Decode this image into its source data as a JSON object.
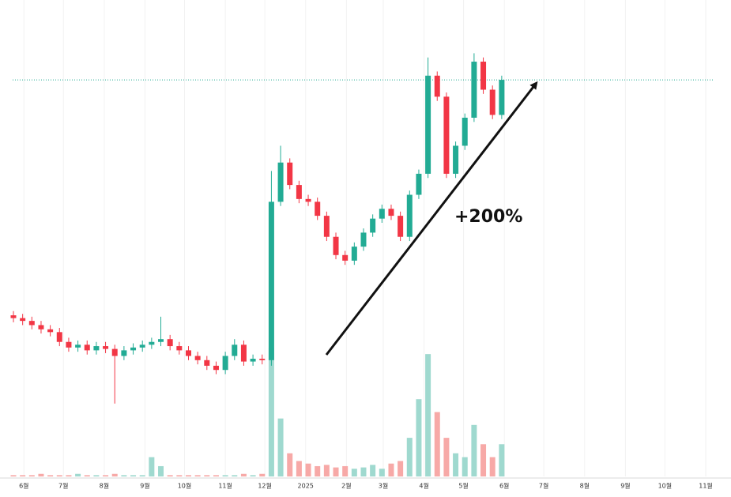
{
  "chart_data": {
    "type": "candlestick",
    "annotation": "+200%",
    "up_color": "#22ab94",
    "down_color": "#f23645",
    "up_volume_color": "#9fd9cf",
    "down_volume_color": "#f7a9a7",
    "last_price_line": true,
    "grid": true,
    "xlim": [
      -17,
      527
    ],
    "ylim": [
      14,
      354
    ],
    "volume_lim": [
      0,
      100
    ],
    "xticks": [
      {
        "value": 0,
        "label": "6월"
      },
      {
        "value": 30,
        "label": "7월"
      },
      {
        "value": 61,
        "label": "8월"
      },
      {
        "value": 92,
        "label": "9월"
      },
      {
        "value": 122,
        "label": "10월"
      },
      {
        "value": 153,
        "label": "11월"
      },
      {
        "value": 183,
        "label": "12월"
      },
      {
        "value": 214,
        "label": "2025"
      },
      {
        "value": 245,
        "label": "2월"
      },
      {
        "value": 273,
        "label": "3월"
      },
      {
        "value": 304,
        "label": "4월"
      },
      {
        "value": 334,
        "label": "5월"
      },
      {
        "value": 365,
        "label": "6월"
      },
      {
        "value": 395,
        "label": "7월"
      },
      {
        "value": 426,
        "label": "8월"
      },
      {
        "value": 457,
        "label": "9월"
      },
      {
        "value": 487,
        "label": "10월"
      },
      {
        "value": 518,
        "label": "11월"
      }
    ],
    "x": [
      -8,
      -1,
      6,
      13,
      20,
      27,
      34,
      41,
      48,
      55,
      62,
      69,
      76,
      83,
      90,
      97,
      104,
      111,
      118,
      125,
      132,
      139,
      146,
      153,
      160,
      167,
      174,
      181,
      188,
      195,
      202,
      209,
      216,
      223,
      230,
      237,
      244,
      251,
      258,
      265,
      272,
      279,
      286,
      293,
      300,
      307,
      314,
      321,
      328,
      335,
      342,
      349,
      356,
      363
    ],
    "open": [
      129,
      127,
      125,
      122,
      119,
      117,
      110,
      106,
      108,
      104,
      107,
      105,
      100,
      104,
      106,
      108,
      110,
      112,
      107,
      104,
      100,
      97,
      93,
      90,
      100,
      108,
      96,
      98,
      97,
      210,
      238,
      222,
      212,
      210,
      200,
      185,
      172,
      168,
      178,
      188,
      198,
      205,
      200,
      185,
      215,
      230,
      300,
      285,
      230,
      250,
      270,
      310,
      290,
      272
    ],
    "high": [
      132,
      130,
      128,
      125,
      122,
      120,
      113,
      111,
      111,
      110,
      110,
      108,
      107,
      109,
      111,
      113,
      128,
      115,
      110,
      107,
      103,
      100,
      96,
      103,
      112,
      111,
      101,
      101,
      232,
      250,
      241,
      225,
      215,
      213,
      203,
      188,
      175,
      181,
      191,
      201,
      208,
      208,
      203,
      218,
      233,
      313,
      303,
      288,
      253,
      273,
      316,
      313,
      293,
      300
    ],
    "low": [
      124,
      122,
      119,
      116,
      114,
      107,
      103,
      103,
      101,
      101,
      102,
      66,
      97,
      101,
      103,
      105,
      107,
      104,
      101,
      97,
      94,
      90,
      87,
      87,
      97,
      93,
      93,
      94,
      93,
      207,
      219,
      209,
      207,
      197,
      182,
      169,
      165,
      165,
      175,
      185,
      195,
      197,
      182,
      182,
      212,
      227,
      282,
      227,
      227,
      247,
      267,
      287,
      269,
      269
    ],
    "close": [
      127,
      125,
      122,
      119,
      117,
      110,
      106,
      108,
      104,
      107,
      105,
      100,
      104,
      106,
      108,
      110,
      112,
      107,
      104,
      100,
      97,
      93,
      90,
      100,
      108,
      96,
      98,
      97,
      210,
      238,
      222,
      212,
      210,
      200,
      185,
      172,
      168,
      178,
      188,
      198,
      205,
      200,
      185,
      215,
      230,
      300,
      285,
      230,
      250,
      270,
      310,
      290,
      272,
      297
    ],
    "volume": [
      1,
      1,
      1,
      2,
      1,
      1,
      1,
      2,
      1,
      1,
      1,
      2,
      1,
      1,
      1,
      15,
      8,
      1,
      1,
      1,
      1,
      1,
      1,
      1,
      1,
      2,
      1,
      2,
      100,
      45,
      18,
      12,
      10,
      8,
      9,
      7,
      8,
      6,
      7,
      9,
      6,
      10,
      12,
      30,
      60,
      95,
      50,
      30,
      18,
      15,
      40,
      25,
      15,
      25
    ]
  }
}
